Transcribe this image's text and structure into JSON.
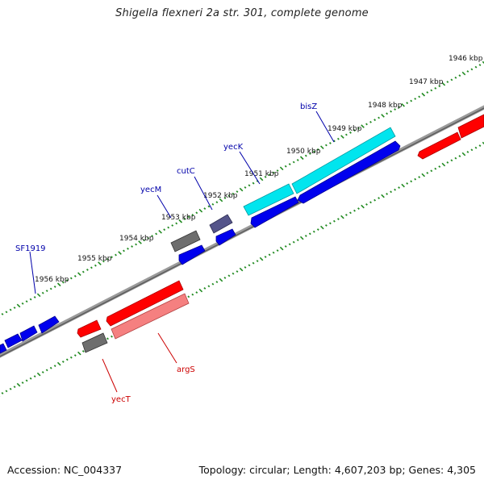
{
  "title": "Shigella flexneri 2a str. 301, complete genome",
  "footer": {
    "accession": "Accession: NC_004337",
    "topology": "Topology: circular; Length: 4,607,203 bp; Genes: 4,305"
  },
  "colors": {
    "background": "#ffffff",
    "backbone": "#808080",
    "tick": "#228b22",
    "forward_feature": "#0000ff",
    "reverse_feature": "#ff0000",
    "cyan_feature": "#00e5ee",
    "dark_feature": "#5a5a8a",
    "gray_feature": "#707070",
    "pink_feature": "#f08080",
    "label_blue": "#0000aa",
    "label_red": "#cc0000"
  },
  "scale_labels": [
    "1946 kbp",
    "1947 kbp",
    "1948 kbp",
    "1949 kbp",
    "1950 kbp",
    "1951 kbp",
    "1952 kbp",
    "1953 kbp",
    "1954 kbp",
    "1955 kbp",
    "1956 kbp"
  ],
  "gene_labels": [
    {
      "text": "bisZ",
      "color": "#0000aa"
    },
    {
      "text": "yecK",
      "color": "#0000aa"
    },
    {
      "text": "cutC",
      "color": "#0000aa"
    },
    {
      "text": "yecM",
      "color": "#0000aa"
    },
    {
      "text": "SF1919",
      "color": "#0000aa"
    },
    {
      "text": "argS",
      "color": "#cc0000"
    },
    {
      "text": "yecT",
      "color": "#cc0000"
    }
  ]
}
